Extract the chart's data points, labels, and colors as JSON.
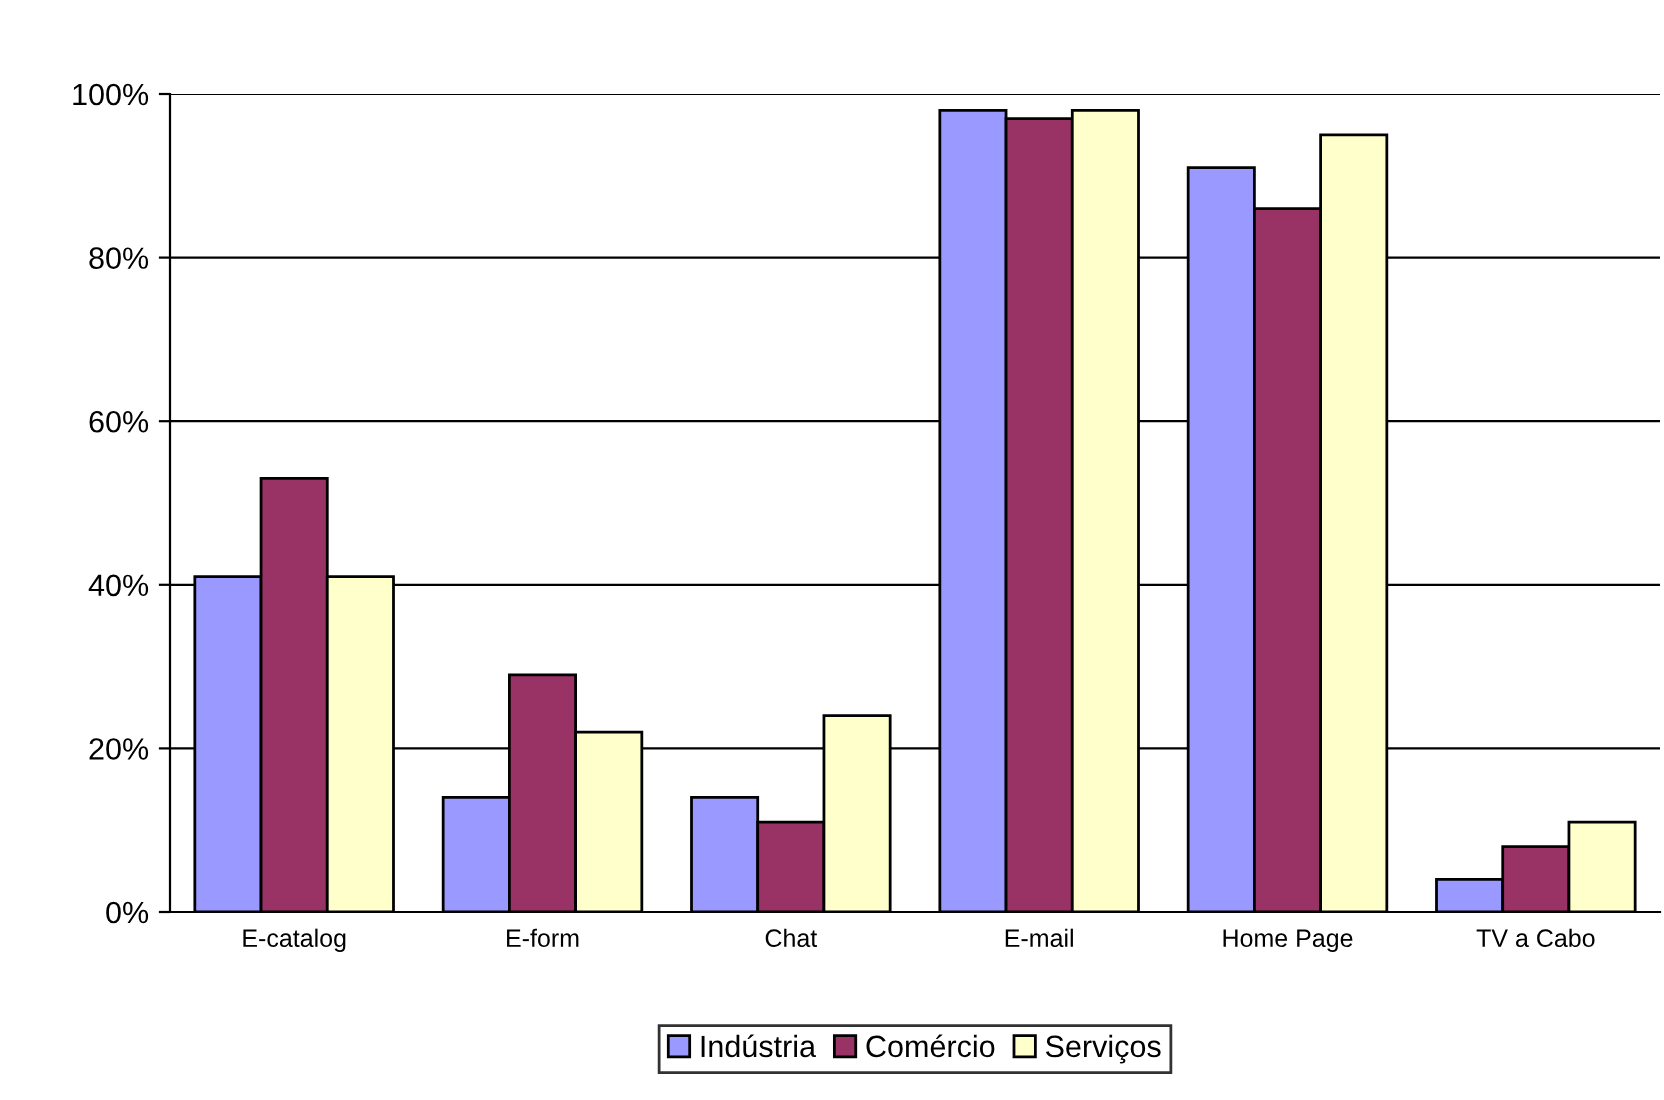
{
  "chart_data": {
    "type": "bar",
    "categories": [
      "E-catalog",
      "E-form",
      "Chat",
      "E-mail",
      "Home Page",
      "TV a Cabo"
    ],
    "series": [
      {
        "name": "Indústria",
        "color": "#9999ff",
        "values": [
          41,
          14,
          14,
          98,
          91,
          4
        ]
      },
      {
        "name": "Comércio",
        "color": "#993366",
        "values": [
          53,
          29,
          11,
          97,
          86,
          8
        ]
      },
      {
        "name": "Serviços",
        "color": "#ffffcc",
        "values": [
          41,
          22,
          24,
          98,
          95,
          11
        ]
      }
    ],
    "ylim": [
      0,
      100
    ],
    "yticks": [
      {
        "value": 0,
        "label": "0%"
      },
      {
        "value": 20,
        "label": "20%"
      },
      {
        "value": 40,
        "label": "40%"
      },
      {
        "value": 60,
        "label": "60%"
      },
      {
        "value": 80,
        "label": "80%"
      },
      {
        "value": 100,
        "label": "100%"
      }
    ],
    "grid": "y",
    "legend": "bottom"
  }
}
